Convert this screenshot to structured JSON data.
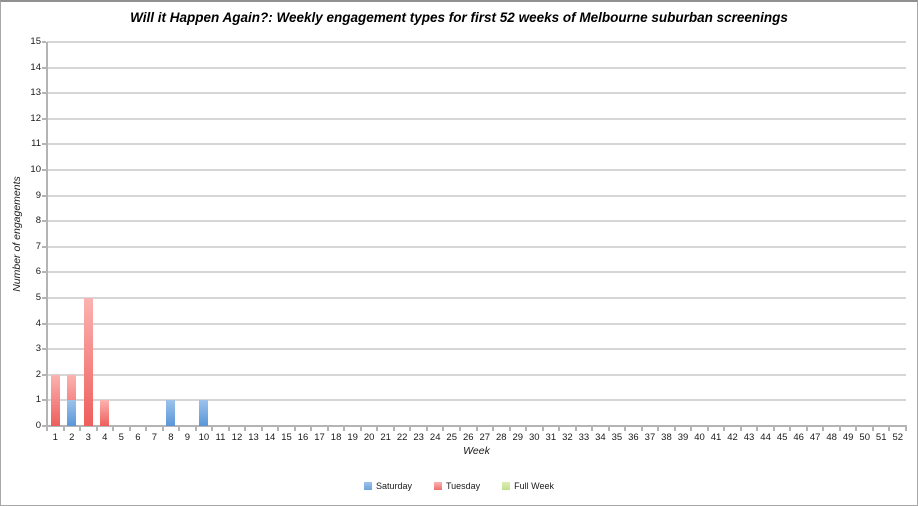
{
  "chart_data": {
    "type": "bar",
    "title": "Will it Happen Again?: Weekly engagement types for first 52 weeks of Melbourne suburban screenings",
    "xlabel": "Week",
    "ylabel": "Number of engagements",
    "ylim": [
      0,
      15
    ],
    "ytick_step": 1,
    "grid": true,
    "legend_position": "bottom",
    "bar_overlap": "series drawn at same x position, later legend series behind, Saturday in front",
    "categories": [
      "1",
      "2",
      "3",
      "4",
      "5",
      "6",
      "7",
      "8",
      "9",
      "10",
      "11",
      "12",
      "13",
      "14",
      "15",
      "16",
      "17",
      "18",
      "19",
      "20",
      "21",
      "22",
      "23",
      "24",
      "25",
      "26",
      "27",
      "28",
      "29",
      "30",
      "31",
      "32",
      "33",
      "34",
      "35",
      "36",
      "37",
      "38",
      "39",
      "40",
      "41",
      "42",
      "43",
      "44",
      "45",
      "46",
      "47",
      "48",
      "49",
      "50",
      "51",
      "52"
    ],
    "series": [
      {
        "name": "Saturday",
        "legend_color": "#6EA4DD",
        "color_top": "#9CC3EB",
        "color_bottom": "#5A96D8",
        "values": [
          0,
          1,
          0,
          0,
          0,
          0,
          0,
          1,
          0,
          1,
          0,
          0,
          0,
          0,
          0,
          0,
          0,
          0,
          0,
          0,
          0,
          0,
          0,
          0,
          0,
          0,
          0,
          0,
          0,
          0,
          0,
          0,
          0,
          0,
          0,
          0,
          0,
          0,
          0,
          0,
          0,
          0,
          0,
          0,
          0,
          0,
          0,
          0,
          0,
          0,
          0,
          0
        ]
      },
      {
        "name": "Tuesday",
        "legend_color": "#F0706F",
        "color_top": "#FBB3B1",
        "color_bottom": "#EE5E5C",
        "values": [
          2,
          2,
          5,
          1,
          0,
          0,
          0,
          0,
          0,
          0,
          0,
          0,
          0,
          0,
          0,
          0,
          0,
          0,
          0,
          0,
          0,
          0,
          0,
          0,
          0,
          0,
          0,
          0,
          0,
          0,
          0,
          0,
          0,
          0,
          0,
          0,
          0,
          0,
          0,
          0,
          0,
          0,
          0,
          0,
          0,
          0,
          0,
          0,
          0,
          0,
          0,
          0
        ]
      },
      {
        "name": "Full Week",
        "legend_color": "#C3DF8C",
        "color_top": "#DCEDB4",
        "color_bottom": "#B3D66E",
        "values": [
          0,
          0,
          0,
          0,
          0,
          0,
          0,
          0,
          0,
          0,
          0,
          0,
          0,
          0,
          0,
          0,
          0,
          0,
          0,
          0,
          0,
          0,
          0,
          0,
          0,
          0,
          0,
          0,
          0,
          0,
          0,
          0,
          0,
          0,
          0,
          0,
          0,
          0,
          0,
          0,
          0,
          0,
          0,
          0,
          0,
          0,
          0,
          0,
          0,
          0,
          0,
          0
        ]
      }
    ],
    "draw_order": [
      "Full Week",
      "Tuesday",
      "Saturday"
    ]
  }
}
